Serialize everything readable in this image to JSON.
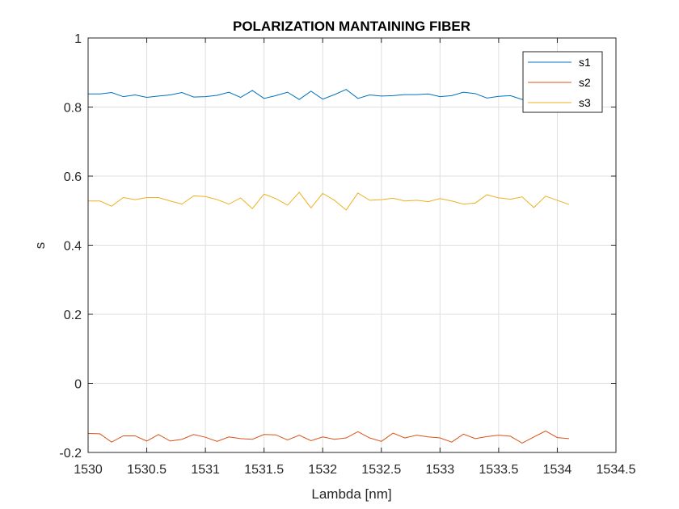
{
  "chart_data": {
    "type": "line",
    "title": "POLARIZATION MANTAINING FIBER",
    "xlabel": "Lambda [nm]",
    "ylabel": "s",
    "xlim": [
      1530,
      1534.5
    ],
    "ylim": [
      -0.2,
      1
    ],
    "xticks": [
      "1530",
      "1530.5",
      "1531",
      "1531.5",
      "1532",
      "1532.5",
      "1533",
      "1533.5",
      "1534",
      "1534.5"
    ],
    "yticks": [
      "-0.2",
      "0",
      "0.2",
      "0.4",
      "0.6",
      "0.8",
      "1"
    ],
    "grid": true,
    "legend_position": "top-right",
    "x": [
      1530.0,
      1530.1,
      1530.2,
      1530.3,
      1530.4,
      1530.5,
      1530.6,
      1530.7,
      1530.8,
      1530.9,
      1531.0,
      1531.1,
      1531.2,
      1531.3,
      1531.4,
      1531.5,
      1531.6,
      1531.7,
      1531.8,
      1531.9,
      1532.0,
      1532.1,
      1532.2,
      1532.3,
      1532.4,
      1532.5,
      1532.6,
      1532.7,
      1532.8,
      1532.9,
      1533.0,
      1533.1,
      1533.2,
      1533.3,
      1533.4,
      1533.5,
      1533.6,
      1533.7,
      1533.8,
      1533.9,
      1534.0,
      1534.1
    ],
    "series": [
      {
        "name": "s1",
        "color": "#0072BD",
        "values": [
          0.838,
          0.838,
          0.842,
          0.83,
          0.835,
          0.828,
          0.832,
          0.835,
          0.842,
          0.829,
          0.83,
          0.834,
          0.843,
          0.828,
          0.848,
          0.825,
          0.833,
          0.843,
          0.822,
          0.846,
          0.823,
          0.836,
          0.851,
          0.825,
          0.835,
          0.832,
          0.833,
          0.836,
          0.836,
          0.838,
          0.83,
          0.833,
          0.843,
          0.839,
          0.826,
          0.831,
          0.833,
          0.822,
          0.831,
          0.828,
          0.83,
          0.829
        ]
      },
      {
        "name": "s2",
        "color": "#D95319",
        "values": [
          -0.145,
          -0.146,
          -0.17,
          -0.152,
          -0.152,
          -0.167,
          -0.148,
          -0.167,
          -0.162,
          -0.148,
          -0.156,
          -0.168,
          -0.155,
          -0.16,
          -0.162,
          -0.148,
          -0.149,
          -0.164,
          -0.15,
          -0.166,
          -0.155,
          -0.162,
          -0.158,
          -0.14,
          -0.158,
          -0.168,
          -0.144,
          -0.158,
          -0.15,
          -0.155,
          -0.158,
          -0.17,
          -0.147,
          -0.16,
          -0.154,
          -0.15,
          -0.153,
          -0.173,
          -0.155,
          -0.138,
          -0.157,
          -0.16
        ]
      },
      {
        "name": "s3",
        "color": "#EDB120",
        "values": [
          0.528,
          0.528,
          0.513,
          0.538,
          0.532,
          0.538,
          0.538,
          0.528,
          0.519,
          0.543,
          0.541,
          0.532,
          0.519,
          0.537,
          0.506,
          0.548,
          0.535,
          0.516,
          0.553,
          0.508,
          0.55,
          0.53,
          0.502,
          0.551,
          0.53,
          0.532,
          0.536,
          0.528,
          0.53,
          0.526,
          0.535,
          0.528,
          0.519,
          0.522,
          0.546,
          0.537,
          0.533,
          0.54,
          0.509,
          0.542,
          0.53,
          0.518
        ]
      }
    ]
  }
}
